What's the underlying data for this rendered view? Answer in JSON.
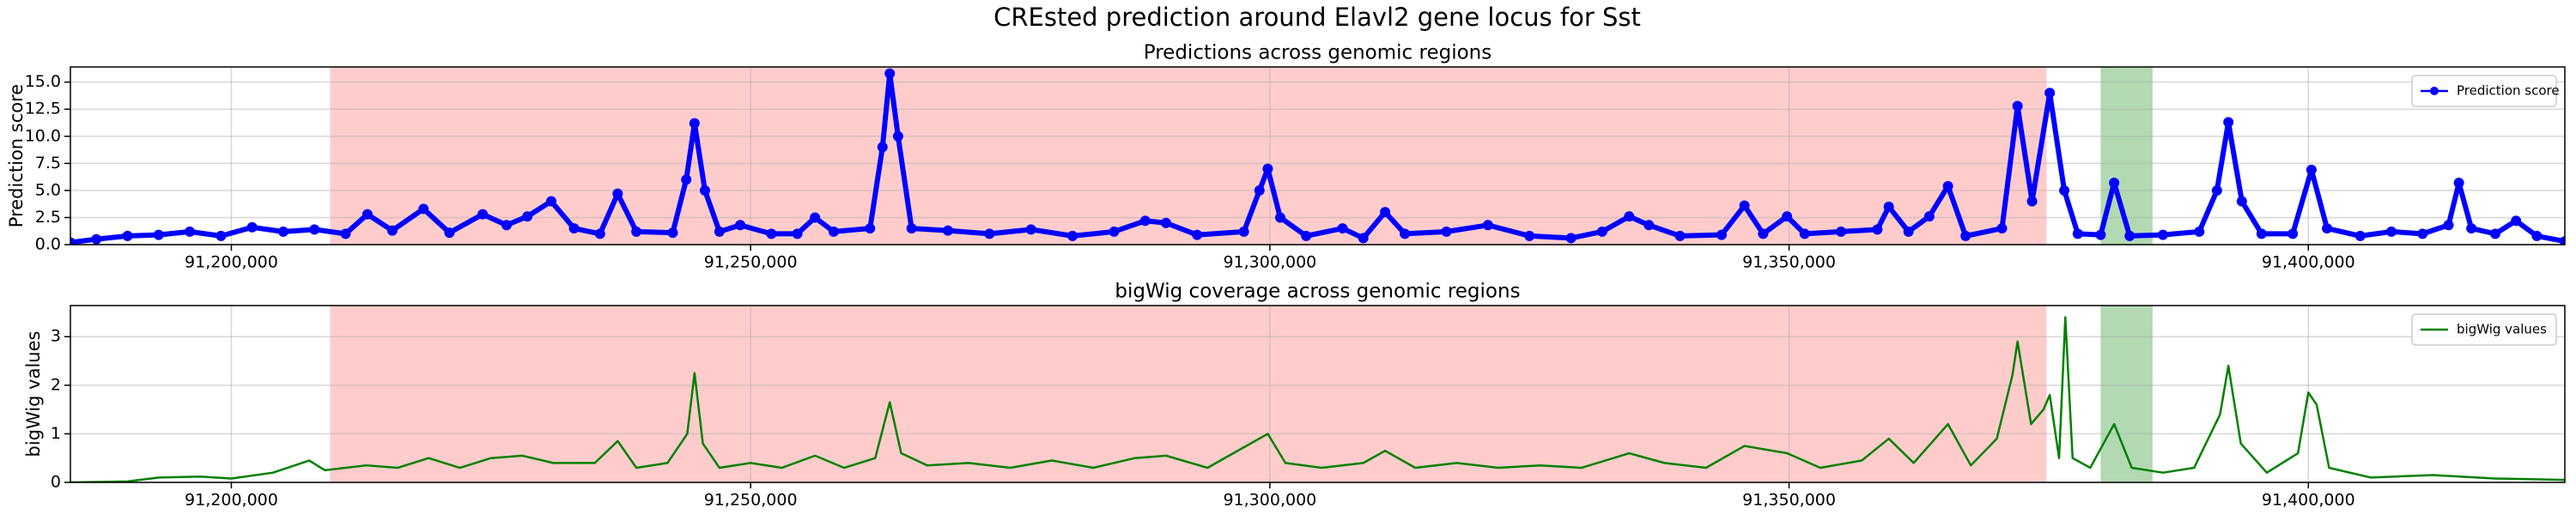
{
  "title": "CREsted prediction around Elavl2 gene locus for Sst",
  "chart_data": [
    {
      "type": "line",
      "title": "Predictions across genomic regions",
      "ylabel": "Prediction score",
      "xlim": [
        91184500,
        91424700
      ],
      "ylim": [
        0,
        16.4
      ],
      "grid": true,
      "legend": "upper right",
      "xticks": [
        {
          "value": 91200000,
          "label": "91,200,000"
        },
        {
          "value": 91250000,
          "label": "91,250,000"
        },
        {
          "value": 91300000,
          "label": "91,300,000"
        },
        {
          "value": 91350000,
          "label": "91,350,000"
        },
        {
          "value": 91400000,
          "label": "91,400,000"
        }
      ],
      "yticks": [
        {
          "value": 0,
          "label": "0.0"
        },
        {
          "value": 2.5,
          "label": "2.5"
        },
        {
          "value": 5,
          "label": "5.0"
        },
        {
          "value": 7.5,
          "label": "7.5"
        },
        {
          "value": 10,
          "label": "10.0"
        },
        {
          "value": 12.5,
          "label": "12.5"
        },
        {
          "value": 15,
          "label": "15.0"
        }
      ],
      "regions": [
        {
          "start": 91209500,
          "end": 91374800,
          "color": "#ff0000",
          "opacity": 0.2
        },
        {
          "start": 91380000,
          "end": 91385000,
          "color": "#008000",
          "opacity": 0.3
        }
      ],
      "series": [
        {
          "name": "Prediction score",
          "color": "#0000ff",
          "marker": true,
          "x": [
            91184500,
            91187000,
            91190000,
            91193000,
            91196000,
            91199000,
            91202000,
            91205000,
            91208000,
            91211000,
            91213100,
            91215500,
            91218500,
            91221000,
            91224200,
            91226500,
            91228500,
            91230800,
            91233000,
            91235500,
            91237200,
            91239000,
            91242500,
            91243800,
            91244600,
            91245600,
            91247000,
            91249000,
            91252000,
            91254500,
            91256200,
            91258000,
            91261500,
            91262700,
            91263400,
            91264200,
            91265500,
            91269000,
            91273000,
            91277000,
            91281000,
            91285000,
            91288000,
            91290000,
            91293000,
            91297500,
            91299000,
            91299800,
            91301000,
            91303500,
            91307000,
            91309000,
            91311100,
            91313000,
            91317000,
            91321000,
            91325000,
            91329000,
            91332000,
            91334600,
            91336500,
            91339500,
            91343500,
            91345700,
            91347500,
            91349800,
            91351500,
            91355000,
            91358500,
            91359600,
            91361500,
            91363500,
            91365300,
            91367000,
            91370500,
            91372000,
            91373400,
            91375100,
            91376500,
            91377800,
            91380000,
            91381300,
            91382800,
            91386000,
            91389500,
            91391200,
            91392300,
            91393600,
            91395500,
            91398500,
            91400300,
            91401800,
            91405000,
            91408000,
            91411000,
            91413500,
            91414500,
            91415700,
            91418000,
            91420000,
            91422000,
            91424700
          ],
          "values": [
            0.2,
            0.5,
            0.8,
            0.9,
            1.2,
            0.8,
            1.6,
            1.2,
            1.4,
            1.0,
            2.8,
            1.3,
            3.3,
            1.1,
            2.8,
            1.8,
            2.6,
            4.0,
            1.5,
            1.0,
            4.7,
            1.2,
            1.1,
            6.0,
            11.2,
            5.0,
            1.2,
            1.8,
            1.0,
            1.0,
            2.5,
            1.2,
            1.5,
            9.0,
            15.8,
            10.0,
            1.5,
            1.3,
            1.0,
            1.4,
            0.8,
            1.2,
            2.2,
            2.0,
            0.9,
            1.2,
            5.0,
            7.0,
            2.5,
            0.8,
            1.5,
            0.6,
            3.0,
            1.0,
            1.2,
            1.8,
            0.8,
            0.6,
            1.2,
            2.6,
            1.8,
            0.8,
            0.9,
            3.6,
            1.0,
            2.6,
            1.0,
            1.2,
            1.4,
            3.5,
            1.2,
            2.6,
            5.4,
            0.8,
            1.5,
            12.8,
            4.0,
            14.0,
            5.0,
            1.0,
            0.9,
            5.7,
            0.8,
            0.9,
            1.2,
            5.0,
            11.3,
            4.0,
            1.0,
            1.0,
            6.9,
            1.5,
            0.8,
            1.2,
            1.0,
            1.8,
            5.7,
            1.5,
            1.0,
            2.2,
            0.8,
            0.3
          ]
        }
      ]
    },
    {
      "type": "line",
      "title": "bigWig coverage across genomic regions",
      "ylabel": "bigWig values",
      "xlim": [
        91184500,
        91424700
      ],
      "ylim": [
        0,
        3.64
      ],
      "grid": true,
      "legend": "upper right",
      "xticks": [
        {
          "value": 91200000,
          "label": "91,200,000"
        },
        {
          "value": 91250000,
          "label": "91,250,000"
        },
        {
          "value": 91300000,
          "label": "91,300,000"
        },
        {
          "value": 91350000,
          "label": "91,350,000"
        },
        {
          "value": 91400000,
          "label": "91,400,000"
        }
      ],
      "yticks": [
        0,
        1,
        2,
        3
      ],
      "regions": [
        {
          "start": 91209500,
          "end": 91374800,
          "color": "#ff0000",
          "opacity": 0.2
        },
        {
          "start": 91380000,
          "end": 91385000,
          "color": "#008000",
          "opacity": 0.3
        }
      ],
      "series": [
        {
          "name": "bigWig values",
          "color": "#008000",
          "marker": false,
          "x": [
            91184500,
            91190000,
            91193000,
            91197000,
            91200000,
            91204000,
            91207500,
            91209000,
            91213000,
            91216000,
            91219000,
            91222000,
            91225000,
            91228000,
            91231000,
            91235000,
            91237200,
            91239000,
            91242000,
            91243900,
            91244600,
            91245400,
            91247000,
            91250000,
            91253000,
            91256200,
            91259000,
            91262000,
            91263400,
            91264500,
            91267000,
            91271000,
            91275000,
            91279000,
            91283000,
            91287000,
            91290000,
            91294000,
            91299800,
            91301500,
            91305000,
            91309000,
            91311100,
            91314000,
            91318000,
            91322000,
            91326000,
            91330000,
            91334600,
            91338000,
            91342000,
            91345700,
            91349800,
            91353000,
            91357000,
            91359600,
            91362000,
            91365300,
            91367500,
            91370000,
            91371500,
            91372000,
            91373300,
            91374500,
            91375100,
            91376000,
            91376600,
            91377300,
            91379000,
            91381300,
            91383000,
            91386000,
            91389000,
            91391500,
            91392300,
            91393500,
            91396000,
            91399000,
            91400000,
            91400800,
            91402000,
            91406000,
            91412000,
            91418000,
            91424700
          ],
          "values": [
            0.0,
            0.02,
            0.1,
            0.12,
            0.08,
            0.2,
            0.45,
            0.25,
            0.35,
            0.3,
            0.5,
            0.3,
            0.5,
            0.55,
            0.4,
            0.4,
            0.85,
            0.3,
            0.4,
            1.0,
            2.25,
            0.8,
            0.3,
            0.4,
            0.3,
            0.55,
            0.3,
            0.5,
            1.65,
            0.6,
            0.35,
            0.4,
            0.3,
            0.45,
            0.3,
            0.5,
            0.55,
            0.3,
            1.0,
            0.4,
            0.3,
            0.4,
            0.65,
            0.3,
            0.4,
            0.3,
            0.35,
            0.3,
            0.6,
            0.4,
            0.3,
            0.75,
            0.6,
            0.3,
            0.45,
            0.9,
            0.4,
            1.2,
            0.35,
            0.9,
            2.2,
            2.9,
            1.2,
            1.5,
            1.8,
            0.5,
            3.4,
            0.5,
            0.3,
            1.2,
            0.3,
            0.2,
            0.3,
            1.4,
            2.4,
            0.8,
            0.2,
            0.6,
            1.85,
            1.6,
            0.3,
            0.1,
            0.15,
            0.08,
            0.05
          ]
        }
      ]
    }
  ]
}
